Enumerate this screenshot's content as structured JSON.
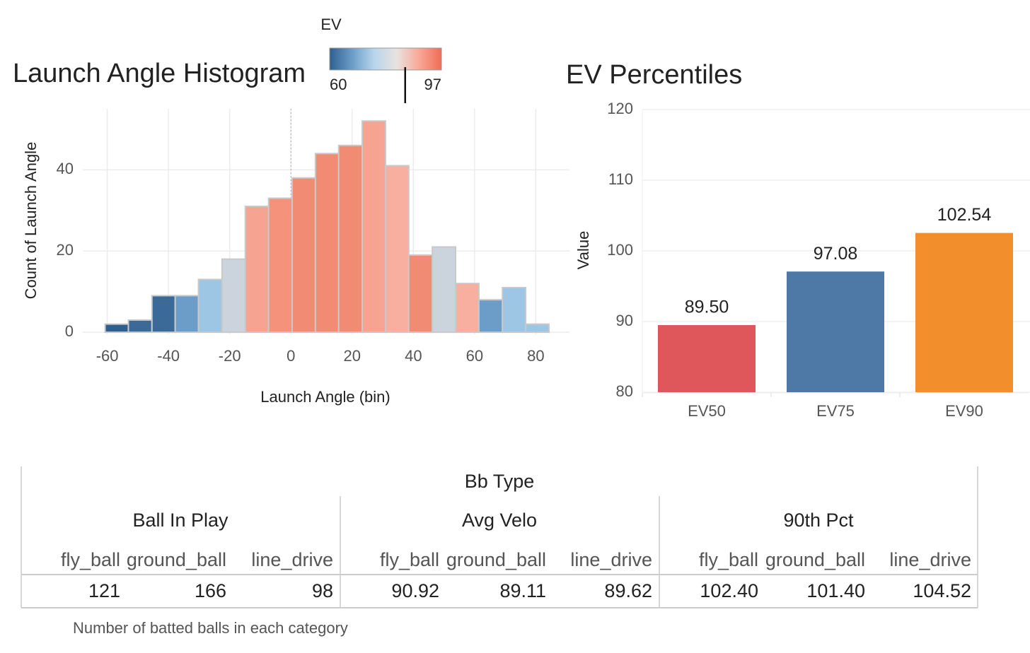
{
  "chart_data": [
    {
      "type": "histogram",
      "title": "Launch Angle Histogram",
      "x_label": "Launch Angle (bin)",
      "y_label": "Count of Launch Angle",
      "bins": [
        -60.7,
        -53.1,
        -45.4,
        -37.8,
        -30.2,
        -22.5,
        -14.9,
        -7.3,
        0.4,
        8.0,
        15.6,
        23.3,
        30.9,
        38.5,
        46.2,
        53.8,
        61.4,
        69.1,
        76.7,
        84.3
      ],
      "values": [
        2,
        3,
        9,
        9,
        13,
        18,
        31,
        33,
        38,
        44,
        46,
        52,
        41,
        19,
        21,
        12,
        8,
        11,
        2
      ],
      "colors": [
        "#2f5f8f",
        "#3b6a98",
        "#3b6a98",
        "#6b9dc8",
        "#9dc6e4",
        "#cbd3dc",
        "#f6a392",
        "#f4927c",
        "#f28b74",
        "#f28b74",
        "#f28b74",
        "#f6a392",
        "#f9afa0",
        "#f28b74",
        "#cbd3dc",
        "#f9afa0",
        "#6b9dc8",
        "#9dc6e4",
        "#9dc6e4"
      ],
      "xlim": [
        -68,
        91
      ],
      "ylim": [
        -0.5,
        55
      ],
      "xticks": [
        -60,
        -40,
        -20,
        0,
        20,
        40,
        60,
        80
      ],
      "yticks": [
        0,
        20,
        40
      ],
      "grid": true,
      "vline": 0,
      "legend": {
        "title": "EV",
        "min": 60,
        "max": 97,
        "marker": 85,
        "colors": [
          "#2f5f8f",
          "#6b9dc8",
          "#b8d6ec",
          "#e8e2de",
          "#f9a898",
          "#ef6d55"
        ]
      }
    },
    {
      "type": "bar",
      "title": "EV Percentiles",
      "y_label": "Value",
      "categories": [
        "EV50",
        "EV75",
        "EV90"
      ],
      "values": [
        89.5,
        97.08,
        102.54
      ],
      "value_labels": [
        "89.50",
        "97.08",
        "102.54"
      ],
      "colors": [
        "#e0575b",
        "#4e79a6",
        "#f28e2b"
      ],
      "ylim": [
        80,
        120.5
      ],
      "yticks": [
        80,
        90,
        100,
        110,
        120
      ],
      "grid": true
    }
  ],
  "table": {
    "spanner": "Bb Type",
    "groups": [
      "Ball In Play",
      "Avg Velo",
      "90th Pct"
    ],
    "columns": [
      "fly_ball",
      "ground_ball",
      "line_drive",
      "fly_ball",
      "ground_ball",
      "line_drive",
      "fly_ball",
      "ground_ball",
      "line_drive"
    ],
    "rows": [
      [
        "121",
        "166",
        "98",
        "90.92",
        "89.11",
        "89.62",
        "102.40",
        "101.40",
        "104.52"
      ]
    ],
    "caption": "Number of batted balls in each category"
  }
}
